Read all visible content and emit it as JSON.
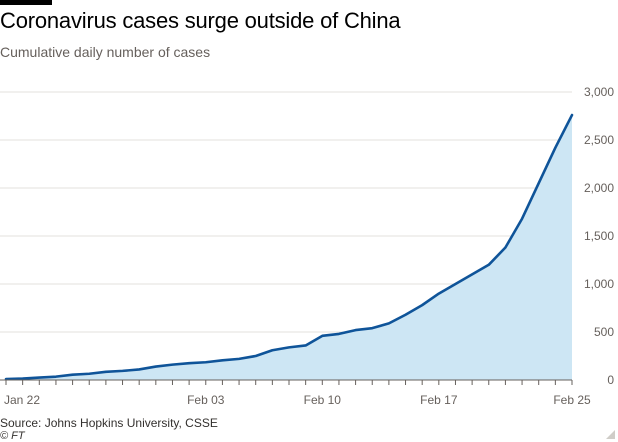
{
  "header": {
    "title": "Coronavirus cases surge outside of China",
    "subtitle": "Cumulative daily number of cases"
  },
  "footer": {
    "source": "Source: Johns Hopkins University, CSSE",
    "credit": "© FT"
  },
  "colors": {
    "line": "#0f5499",
    "area": "#cde6f4",
    "grid": "#e3e0dc",
    "baseline": "#66605c"
  },
  "chart_data": {
    "type": "area",
    "title": "Coronavirus cases surge outside of China",
    "subtitle": "Cumulative daily number of cases",
    "xlabel": "",
    "ylabel": "",
    "x": [
      "2020-01-22",
      "2020-01-23",
      "2020-01-24",
      "2020-01-25",
      "2020-01-26",
      "2020-01-27",
      "2020-01-28",
      "2020-01-29",
      "2020-01-30",
      "2020-01-31",
      "2020-02-01",
      "2020-02-02",
      "2020-02-03",
      "2020-02-04",
      "2020-02-05",
      "2020-02-06",
      "2020-02-07",
      "2020-02-08",
      "2020-02-09",
      "2020-02-10",
      "2020-02-11",
      "2020-02-12",
      "2020-02-13",
      "2020-02-14",
      "2020-02-15",
      "2020-02-16",
      "2020-02-17",
      "2020-02-18",
      "2020-02-19",
      "2020-02-20",
      "2020-02-21",
      "2020-02-22",
      "2020-02-23",
      "2020-02-24",
      "2020-02-25"
    ],
    "series": [
      {
        "values": [
          10,
          15,
          25,
          35,
          55,
          65,
          85,
          95,
          110,
          140,
          160,
          175,
          185,
          205,
          220,
          250,
          310,
          340,
          360,
          460,
          480,
          520,
          540,
          590,
          680,
          780,
          900,
          1000,
          1100,
          1200,
          1380,
          1680,
          2050,
          2420,
          2760
        ]
      }
    ],
    "x_tick_labels": [
      "Jan 22",
      "Feb 03",
      "Feb 10",
      "Feb 17",
      "Feb 25"
    ],
    "x_tick_indices": [
      0,
      12,
      19,
      26,
      34
    ],
    "y_ticks": [
      0,
      500,
      1000,
      1500,
      2000,
      2500,
      3000
    ],
    "y_tick_labels": [
      "0",
      "500",
      "1,000",
      "1,500",
      "2,000",
      "2,500",
      "3,000"
    ],
    "ylim": [
      0,
      3000
    ],
    "grid": true
  }
}
